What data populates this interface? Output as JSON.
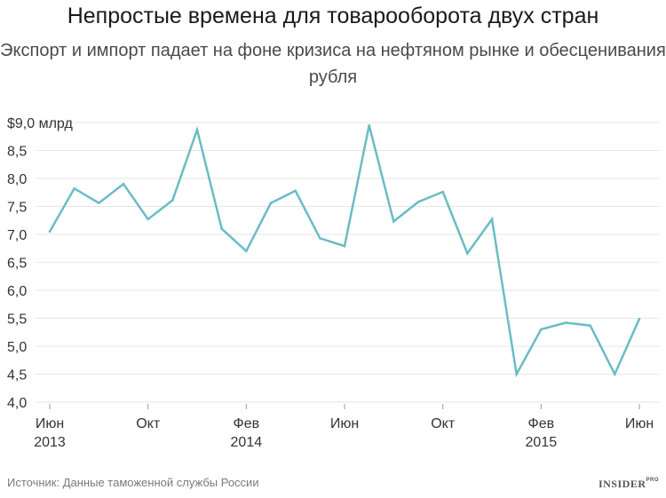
{
  "title": "Непростые времена для товарооборота двух стран",
  "subtitle": "Экспорт и импорт падает на фоне кризиса на нефтяном рынке и обесценивания рубля",
  "source": "Источник: Данные таможенной службы России",
  "brand": {
    "name": "INSIDER",
    "suffix": "PRO"
  },
  "chart_data": {
    "type": "line",
    "ylim": [
      4.0,
      9.0
    ],
    "yticks": [
      {
        "value": 9.0,
        "label": "$9,0 млрд"
      },
      {
        "value": 8.5,
        "label": "8,5"
      },
      {
        "value": 8.0,
        "label": "8,0"
      },
      {
        "value": 7.5,
        "label": "7,5"
      },
      {
        "value": 7.0,
        "label": "7,0"
      },
      {
        "value": 6.5,
        "label": "6,5"
      },
      {
        "value": 6.0,
        "label": "6,0"
      },
      {
        "value": 5.5,
        "label": "5,5"
      },
      {
        "value": 5.0,
        "label": "5,0"
      },
      {
        "value": 4.5,
        "label": "4,5"
      },
      {
        "value": 4.0,
        "label": "4,0"
      }
    ],
    "xticks": [
      {
        "index": 0,
        "label": "Июн",
        "year": "2013"
      },
      {
        "index": 4,
        "label": "Окт",
        "year": ""
      },
      {
        "index": 8,
        "label": "Фев",
        "year": "2014"
      },
      {
        "index": 12,
        "label": "Июн",
        "year": ""
      },
      {
        "index": 16,
        "label": "Окт",
        "year": ""
      },
      {
        "index": 20,
        "label": "Фев",
        "year": "2015"
      },
      {
        "index": 24,
        "label": "Июн",
        "year": ""
      }
    ],
    "series": [
      {
        "color": "#6bbcc4",
        "values": [
          7.05,
          7.82,
          7.56,
          7.9,
          7.27,
          7.61,
          8.87,
          7.1,
          6.7,
          7.56,
          7.78,
          6.93,
          6.79,
          8.95,
          7.23,
          7.58,
          7.76,
          6.66,
          7.27,
          4.5,
          5.3,
          5.42,
          5.37,
          4.5,
          5.49
        ]
      }
    ],
    "grid": true,
    "grid_color": "#e6e6e6"
  }
}
